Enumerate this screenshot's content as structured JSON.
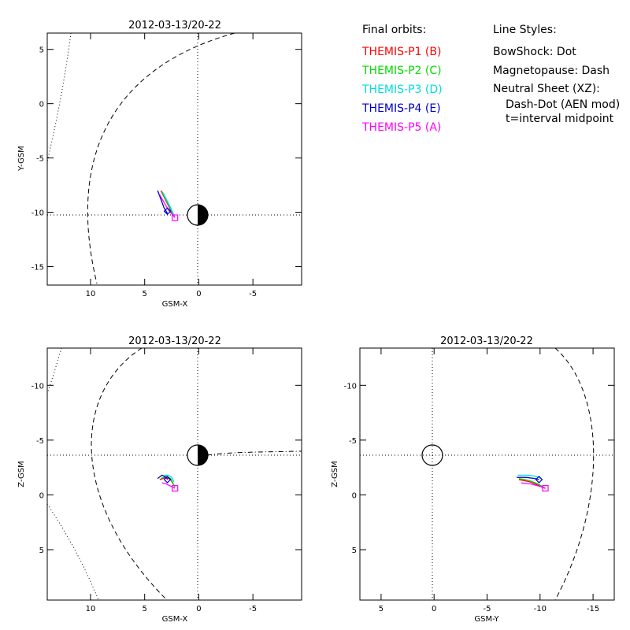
{
  "legend": {
    "header": "Final orbits:",
    "entries": [
      {
        "label": "THEMIS-P1 (B)",
        "color": "#ff0000"
      },
      {
        "label": "THEMIS-P2 (C)",
        "color": "#00dd00"
      },
      {
        "label": "THEMIS-P3 (D)",
        "color": "#00dddd"
      },
      {
        "label": "THEMIS-P4 (E)",
        "color": "#0000cc"
      },
      {
        "label": "THEMIS-P5 (A)",
        "color": "#ff00ff"
      }
    ]
  },
  "line_styles": {
    "header": "Line Styles:",
    "bowshock": "BowShock: Dot",
    "magnetopause": "Magnetopause: Dash",
    "neutral_sheet": "Neutral Sheet (XZ):",
    "neutral_sheet_style": "Dash-Dot (AEN mod)",
    "t_note": "t=interval midpoint"
  },
  "chart_data": [
    {
      "type": "line",
      "title": "2012-03-13/20-22",
      "xlabel": "GSM-X",
      "ylabel": "Y-GSM",
      "xlim": [
        14,
        -9.5
      ],
      "ylim": [
        6.5,
        -16.7
      ],
      "xticks": [
        10,
        5,
        0,
        -5
      ],
      "yticks": [
        -15,
        -10,
        -5,
        0,
        5
      ],
      "series": [
        {
          "color": "#ff0000",
          "points": [
            [
              3.5,
              -8.0
            ],
            [
              3.1,
              -8.8
            ],
            [
              2.7,
              -9.6
            ],
            [
              2.3,
              -10.4
            ]
          ]
        },
        {
          "color": "#00dd00",
          "points": [
            [
              3.4,
              -8.1
            ],
            [
              3.0,
              -8.9
            ],
            [
              2.6,
              -9.7
            ],
            [
              2.25,
              -10.45
            ]
          ]
        },
        {
          "color": "#00dddd",
          "points": [
            [
              3.3,
              -8.2
            ],
            [
              2.9,
              -9.0
            ],
            [
              2.5,
              -9.8
            ],
            [
              2.2,
              -10.5
            ]
          ]
        },
        {
          "color": "#0000cc",
          "points": [
            [
              3.8,
              -8.0
            ],
            [
              3.5,
              -8.8
            ],
            [
              3.2,
              -9.6
            ],
            [
              2.9,
              -10.1
            ]
          ]
        },
        {
          "color": "#ff00ff",
          "points": [
            [
              3.6,
              -8.4
            ],
            [
              3.2,
              -9.1
            ],
            [
              2.8,
              -9.8
            ],
            [
              2.2,
              -10.5
            ]
          ]
        }
      ],
      "markers": [
        {
          "shape": "diamond",
          "color": "#0000cc",
          "x": 2.9,
          "y": -9.9
        },
        {
          "shape": "square",
          "color": "#ff00ff",
          "x": 2.2,
          "y": -10.5
        }
      ]
    },
    {
      "type": "line",
      "title": "2012-03-13/20-22",
      "xlabel": "GSM-X",
      "ylabel": "Z-GSM",
      "xlim": [
        14,
        -9.5
      ],
      "ylim": [
        -13.4,
        9.6
      ],
      "xticks": [
        10,
        5,
        0,
        -5
      ],
      "yticks": [
        5,
        0,
        -5,
        -10
      ],
      "series": [
        {
          "color": "#ff0000",
          "points": [
            [
              3.6,
              -1.4
            ],
            [
              3.0,
              -1.6
            ],
            [
              2.6,
              -1.4
            ],
            [
              2.2,
              -0.7
            ]
          ]
        },
        {
          "color": "#00dd00",
          "points": [
            [
              3.5,
              -1.5
            ],
            [
              3.0,
              -1.7
            ],
            [
              2.6,
              -1.5
            ],
            [
              2.2,
              -0.7
            ]
          ]
        },
        {
          "color": "#00dddd",
          "points": [
            [
              3.2,
              -1.8
            ],
            [
              2.8,
              -1.8
            ],
            [
              2.5,
              -1.6
            ],
            [
              2.3,
              -1.2
            ]
          ]
        },
        {
          "color": "#0000cc",
          "points": [
            [
              3.8,
              -1.5
            ],
            [
              3.4,
              -1.8
            ],
            [
              3.0,
              -1.6
            ],
            [
              2.9,
              -1.4
            ]
          ]
        },
        {
          "color": "#ff00ff",
          "points": [
            [
              3.4,
              -1.1
            ],
            [
              3.0,
              -1.0
            ],
            [
              2.6,
              -0.8
            ],
            [
              2.2,
              -0.6
            ]
          ]
        }
      ],
      "markers": [
        {
          "shape": "diamond",
          "color": "#0000cc",
          "x": 2.9,
          "y": -1.4
        },
        {
          "shape": "square",
          "color": "#ff00ff",
          "x": 2.2,
          "y": -0.6
        }
      ]
    },
    {
      "type": "line",
      "title": "2012-03-13/20-22",
      "xlabel": "GSM-Y",
      "ylabel": "Z-GSM",
      "xlim": [
        7,
        -17
      ],
      "ylim": [
        -13.4,
        9.6
      ],
      "xticks": [
        5,
        0,
        -5,
        -10,
        -15
      ],
      "yticks": [
        5,
        0,
        -5,
        -10
      ],
      "series": [
        {
          "color": "#ff0000",
          "points": [
            [
              -8.0,
              -1.4
            ],
            [
              -9.0,
              -1.2
            ],
            [
              -9.8,
              -0.9
            ],
            [
              -10.5,
              -0.6
            ]
          ]
        },
        {
          "color": "#00dd00",
          "points": [
            [
              -8.0,
              -1.5
            ],
            [
              -9.0,
              -1.3
            ],
            [
              -9.8,
              -1.0
            ],
            [
              -10.5,
              -0.6
            ]
          ]
        },
        {
          "color": "#00dddd",
          "points": [
            [
              -7.9,
              -1.8
            ],
            [
              -8.8,
              -1.8
            ],
            [
              -9.6,
              -1.7
            ],
            [
              -10.1,
              -1.5
            ]
          ]
        },
        {
          "color": "#0000cc",
          "points": [
            [
              -7.8,
              -1.6
            ],
            [
              -8.7,
              -1.6
            ],
            [
              -9.5,
              -1.5
            ],
            [
              -9.9,
              -1.4
            ]
          ]
        },
        {
          "color": "#ff00ff",
          "points": [
            [
              -8.2,
              -1.1
            ],
            [
              -9.1,
              -1.0
            ],
            [
              -9.9,
              -0.8
            ],
            [
              -10.5,
              -0.6
            ]
          ]
        }
      ],
      "markers": [
        {
          "shape": "diamond",
          "color": "#0000cc",
          "x": -9.9,
          "y": -1.4
        },
        {
          "shape": "square",
          "color": "#ff00ff",
          "x": -10.5,
          "y": -0.6
        }
      ]
    }
  ]
}
